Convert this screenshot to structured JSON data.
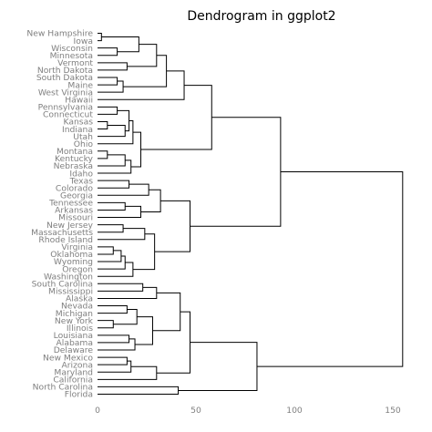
{
  "chart_data": {
    "type": "dendrogram",
    "title": "Dendrogram in ggplot2",
    "xlabel": "",
    "ylabel": "",
    "orientation": "horizontal",
    "xlim": [
      0,
      160
    ],
    "x_ticks": [
      0,
      50,
      100,
      150
    ],
    "grid": false,
    "leaves": [
      "New Hampshire",
      "Iowa",
      "Wisconsin",
      "Minnesota",
      "Vermont",
      "North Dakota",
      "South Dakota",
      "Maine",
      "West Virginia",
      "Hawaii",
      "Pennsylvania",
      "Connecticut",
      "Kansas",
      "Indiana",
      "Utah",
      "Ohio",
      "Montana",
      "Kentucky",
      "Nebraska",
      "Idaho",
      "Texas",
      "Colorado",
      "Georgia",
      "Tennessee",
      "Arkansas",
      "Missouri",
      "New Jersey",
      "Massachusetts",
      "Rhode Island",
      "Virginia",
      "Oklahoma",
      "Wyoming",
      "Oregon",
      "Washington",
      "South Carolina",
      "Mississippi",
      "Alaska",
      "Nevada",
      "Michigan",
      "New York",
      "Illinois",
      "Louisiana",
      "Alabama",
      "Delaware",
      "New Mexico",
      "Arizona",
      "Maryland",
      "California",
      "North Carolina",
      "Florida"
    ],
    "merges": [
      {
        "a": "New Hampshire",
        "b": "Iowa",
        "height": 2
      },
      {
        "a": "Wisconsin",
        "b": "Minnesota",
        "height": 10
      },
      {
        "a": 1,
        "b": 2,
        "height": 21
      },
      {
        "a": "Vermont",
        "b": "North Dakota",
        "height": 15
      },
      {
        "a": 3,
        "b": 4,
        "height": 30
      },
      {
        "a": "South Dakota",
        "b": "Maine",
        "height": 10
      },
      {
        "a": 6,
        "b": "West Virginia",
        "height": 13
      },
      {
        "a": 5,
        "b": 7,
        "height": 35
      },
      {
        "a": 8,
        "b": "Hawaii",
        "height": 44
      },
      {
        "a": "Pennsylvania",
        "b": "Connecticut",
        "height": 10
      },
      {
        "a": "Kansas",
        "b": "Indiana",
        "height": 5
      },
      {
        "a": 11,
        "b": "Utah",
        "height": 14
      },
      {
        "a": 10,
        "b": 12,
        "height": 16
      },
      {
        "a": 13,
        "b": "Ohio",
        "height": 18
      },
      {
        "a": "Montana",
        "b": "Kentucky",
        "height": 5
      },
      {
        "a": 15,
        "b": "Nebraska",
        "height": 14
      },
      {
        "a": 16,
        "b": "Idaho",
        "height": 17
      },
      {
        "a": 14,
        "b": 17,
        "height": 22
      },
      {
        "a": 9,
        "b": 18,
        "height": 58
      },
      {
        "a": "Texas",
        "b": "Colorado",
        "height": 16
      },
      {
        "a": 20,
        "b": "Georgia",
        "height": 26
      },
      {
        "a": "Tennessee",
        "b": "Arkansas",
        "height": 14
      },
      {
        "a": 22,
        "b": "Missouri",
        "height": 22
      },
      {
        "a": 21,
        "b": 23,
        "height": 32
      },
      {
        "a": "New Jersey",
        "b": "Massachusetts",
        "height": 13
      },
      {
        "a": 25,
        "b": "Rhode Island",
        "height": 24
      },
      {
        "a": "Virginia",
        "b": "Oklahoma",
        "height": 8
      },
      {
        "a": 27,
        "b": "Wyoming",
        "height": 12
      },
      {
        "a": 28,
        "b": "Oregon",
        "height": 14
      },
      {
        "a": 29,
        "b": "Washington",
        "height": 18
      },
      {
        "a": 26,
        "b": 30,
        "height": 29
      },
      {
        "a": 24,
        "b": 31,
        "height": 47
      },
      {
        "a": 19,
        "b": 32,
        "height": 93
      },
      {
        "a": "South Carolina",
        "b": "Mississippi",
        "height": 23
      },
      {
        "a": 34,
        "b": "Alaska",
        "height": 30
      },
      {
        "a": "Nevada",
        "b": "Michigan",
        "height": 15
      },
      {
        "a": "New York",
        "b": "Illinois",
        "height": 8
      },
      {
        "a": 36,
        "b": 37,
        "height": 20
      },
      {
        "a": "Louisiana",
        "b": "Alabama",
        "height": 16
      },
      {
        "a": 39,
        "b": "Delaware",
        "height": 19
      },
      {
        "a": 38,
        "b": 40,
        "height": 28
      },
      {
        "a": 35,
        "b": 41,
        "height": 42
      },
      {
        "a": "New Mexico",
        "b": "Arizona",
        "height": 15
      },
      {
        "a": 43,
        "b": "Maryland",
        "height": 17
      },
      {
        "a": 44,
        "b": "California",
        "height": 30
      },
      {
        "a": 42,
        "b": 45,
        "height": 47
      },
      {
        "a": "North Carolina",
        "b": "Florida",
        "height": 41
      },
      {
        "a": 46,
        "b": 47,
        "height": 81
      },
      {
        "a": 33,
        "b": 48,
        "height": 155
      }
    ]
  }
}
